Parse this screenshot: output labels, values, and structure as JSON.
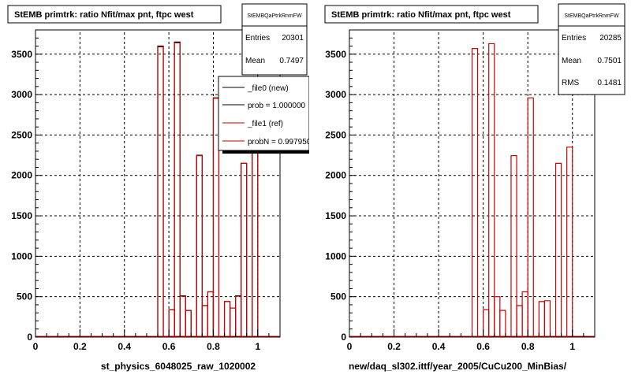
{
  "chart_data": [
    {
      "type": "histogram",
      "title": "StEMB primtrk: ratio Nfit/max pnt, ftpc west",
      "xlabel": "st_physics_6048025_raw_1020002",
      "xlim": [
        0,
        1.1
      ],
      "ylim": [
        0,
        3800
      ],
      "x_ticks": [
        "0",
        "0.2",
        "0.4",
        "0.6",
        "0.8",
        "1"
      ],
      "y_ticks": [
        "0",
        "500",
        "1000",
        "1500",
        "2000",
        "2500",
        "3000",
        "3500"
      ],
      "grid": true,
      "stats": {
        "name": "StEMBQaPtrkRnmFW",
        "entries_label": "Entries",
        "entries": "20301",
        "mean_label": "Mean",
        "mean": "0.7497"
      },
      "legend": {
        "placement": "top-right",
        "entries": [
          {
            "label": "_file0 (new)",
            "color": "#000000"
          },
          {
            "label": "prob = 1.000000",
            "color": "#000000"
          },
          {
            "label": "_file1 (ref)",
            "color": "#cc0000"
          },
          {
            "label": "probN = 0.997950",
            "color": "#cc0000"
          }
        ]
      },
      "series": [
        {
          "name": "_file0 (new)",
          "color": "#000000",
          "bins": [
            [
              0.55,
              0.575,
              3600
            ],
            [
              0.575,
              0.6,
              0
            ],
            [
              0.6,
              0.625,
              340
            ],
            [
              0.625,
              0.65,
              3650
            ],
            [
              0.65,
              0.675,
              510
            ],
            [
              0.675,
              0.7,
              330
            ],
            [
              0.7,
              0.725,
              0
            ],
            [
              0.725,
              0.75,
              2250
            ],
            [
              0.75,
              0.775,
              390
            ],
            [
              0.775,
              0.8,
              560
            ],
            [
              0.8,
              0.825,
              2960
            ],
            [
              0.825,
              0.85,
              0
            ],
            [
              0.85,
              0.875,
              440
            ],
            [
              0.875,
              0.9,
              360
            ],
            [
              0.9,
              0.925,
              510
            ],
            [
              0.925,
              0.95,
              2150
            ],
            [
              0.95,
              0.975,
              0
            ],
            [
              0.975,
              1.0,
              2380
            ]
          ]
        },
        {
          "name": "_file1 (ref)",
          "color": "#cc0000",
          "bins": [
            [
              0.55,
              0.575,
              3590
            ],
            [
              0.575,
              0.6,
              0
            ],
            [
              0.6,
              0.625,
              340
            ],
            [
              0.625,
              0.65,
              3640
            ],
            [
              0.65,
              0.675,
              505
            ],
            [
              0.675,
              0.7,
              330
            ],
            [
              0.7,
              0.725,
              0
            ],
            [
              0.725,
              0.75,
              2245
            ],
            [
              0.75,
              0.775,
              390
            ],
            [
              0.775,
              0.8,
              560
            ],
            [
              0.8,
              0.825,
              2955
            ],
            [
              0.825,
              0.85,
              0
            ],
            [
              0.85,
              0.875,
              440
            ],
            [
              0.875,
              0.9,
              360
            ],
            [
              0.9,
              0.925,
              505
            ],
            [
              0.925,
              0.95,
              2150
            ],
            [
              0.95,
              0.975,
              0
            ],
            [
              0.975,
              1.0,
              2375
            ]
          ]
        }
      ]
    },
    {
      "type": "histogram",
      "title": "StEMB primtrk: ratio Nfit/max pnt, ftpc west",
      "xlabel": "new/daq_sl302.ittf/year_2005/CuCu200_MinBias/",
      "xlim": [
        0,
        1.1
      ],
      "ylim": [
        0,
        3800
      ],
      "x_ticks": [
        "0",
        "0.2",
        "0.4",
        "0.6",
        "0.8",
        "1"
      ],
      "y_ticks": [
        "0",
        "500",
        "1000",
        "1500",
        "2000",
        "2500",
        "3000",
        "3500"
      ],
      "grid": true,
      "stats": {
        "name": "StEMBQaPtrkRnmFW",
        "entries_label": "Entries",
        "entries": "20285",
        "mean_label": "Mean",
        "mean": "0.7501",
        "rms_label": "RMS",
        "rms": "0.1481"
      },
      "series": [
        {
          "name": "",
          "color": "#cc0000",
          "bins": [
            [
              0.55,
              0.575,
              3570
            ],
            [
              0.575,
              0.6,
              0
            ],
            [
              0.6,
              0.625,
              340
            ],
            [
              0.625,
              0.65,
              3630
            ],
            [
              0.65,
              0.675,
              500
            ],
            [
              0.675,
              0.7,
              330
            ],
            [
              0.7,
              0.725,
              0
            ],
            [
              0.725,
              0.75,
              2245
            ],
            [
              0.75,
              0.775,
              390
            ],
            [
              0.775,
              0.8,
              560
            ],
            [
              0.8,
              0.825,
              2960
            ],
            [
              0.825,
              0.85,
              0
            ],
            [
              0.85,
              0.875,
              440
            ],
            [
              0.875,
              0.9,
              450
            ],
            [
              0.9,
              0.925,
              0
            ],
            [
              0.925,
              0.95,
              2150
            ],
            [
              0.95,
              0.975,
              0
            ],
            [
              0.975,
              1.0,
              2350
            ]
          ]
        }
      ]
    }
  ]
}
